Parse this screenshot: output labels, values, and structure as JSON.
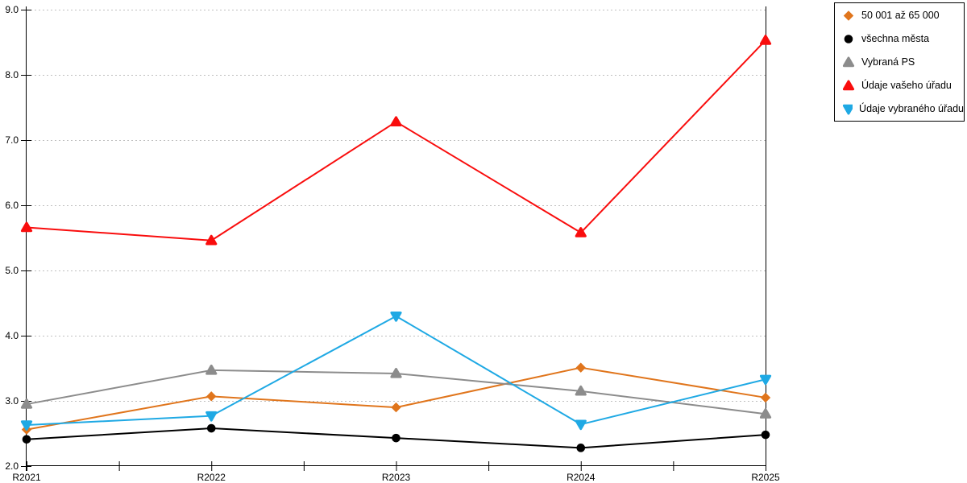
{
  "chart_data": {
    "type": "line",
    "title": "",
    "xlabel": "",
    "ylabel": "",
    "categories": [
      "R2021",
      "R2022",
      "R2023",
      "R2024",
      "R2025"
    ],
    "series": [
      {
        "name": "50 001 až 65 000",
        "marker": "diamond",
        "color": "#E0751C",
        "values": [
          2.56,
          3.07,
          2.9,
          3.51,
          3.05
        ]
      },
      {
        "name": "všechna města",
        "marker": "circle",
        "color": "#000000",
        "values": [
          2.41,
          2.58,
          2.43,
          2.28,
          2.48
        ]
      },
      {
        "name": "Vybraná PS",
        "marker": "triangle-up",
        "color": "#8C8C8C",
        "values": [
          2.95,
          3.47,
          3.42,
          3.15,
          2.8
        ]
      },
      {
        "name": "Údaje vašeho úřadu",
        "marker": "triangle-up",
        "color": "#F90D0D",
        "values": [
          5.66,
          5.46,
          7.28,
          5.58,
          8.53
        ]
      },
      {
        "name": "Údaje vybraného úřadu",
        "marker": "triangle-down",
        "color": "#1FA9E4",
        "values": [
          2.63,
          2.77,
          4.3,
          2.64,
          3.33
        ]
      }
    ],
    "ylim": [
      2.0,
      9.0
    ],
    "ytick_step": 1.0,
    "ytick_labels": [
      "2.0",
      "3.0",
      "4.0",
      "5.0",
      "6.0",
      "7.0",
      "8.0",
      "9.0"
    ],
    "grid": "dotted-horizontal-at-integers",
    "legend_position": "top-right"
  },
  "colors": {
    "background": "#FFFFFF",
    "axis": "#000000",
    "grid": "#BFBFBF",
    "legend_border": "#000000",
    "text": "#000000"
  }
}
